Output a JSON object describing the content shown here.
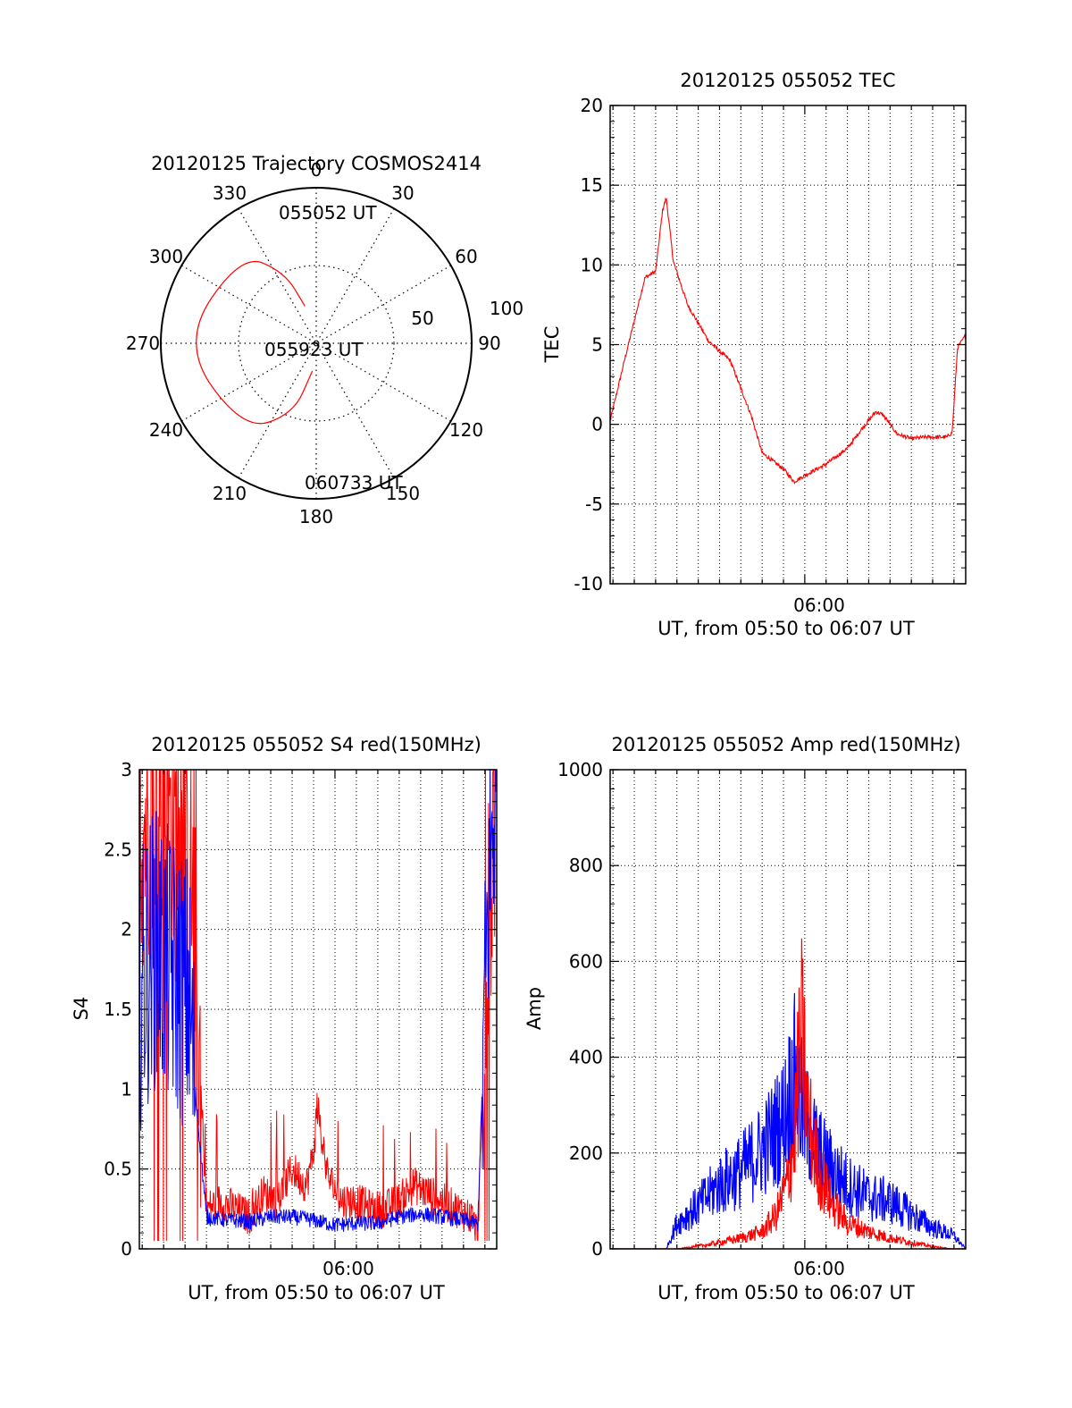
{
  "polar": {
    "title": "20120125 Trajectory COSMOS2414",
    "azimuth_labels": [
      "0",
      "30",
      "60",
      "90",
      "120",
      "150",
      "180",
      "210",
      "240",
      "270",
      "300",
      "330"
    ],
    "radial_labels": [
      "50",
      "100"
    ],
    "start_label": "055052 UT",
    "mid_label": "055923 UT",
    "end_label": "060733 UT"
  },
  "tec": {
    "title": "20120125 055052 TEC",
    "ylabel": "TEC",
    "xtick": "06:00",
    "xlabel": "UT, from 05:50 to 06:07 UT",
    "yticks": [
      "-10",
      "-5",
      "0",
      "5",
      "10",
      "15",
      "20"
    ]
  },
  "s4": {
    "title": "20120125 055052 S4 red(150MHz)",
    "ylabel": "S4",
    "xtick": "06:00",
    "xlabel": "UT, from 05:50 to 06:07 UT",
    "yticks": [
      "0",
      "0.5",
      "1",
      "1.5",
      "2",
      "2.5",
      "3"
    ]
  },
  "amp": {
    "title": "20120125 055052 Amp red(150MHz)",
    "ylabel": "Amp",
    "xtick": "06:00",
    "xlabel": "UT, from 05:50 to 06:07 UT",
    "yticks": [
      "0",
      "200",
      "400",
      "600",
      "800",
      "1000"
    ]
  },
  "colors": {
    "red": "#ff0000",
    "blue": "#0000ff",
    "axis": "#000000"
  },
  "chart_data": [
    {
      "type": "polar",
      "title": "20120125 Trajectory COSMOS2414",
      "azimuth_deg": [
        0,
        30,
        60,
        90,
        120,
        150,
        180,
        210,
        240,
        270,
        300,
        330
      ],
      "radial_rings": [
        50,
        100
      ],
      "trajectory": {
        "color": "red",
        "points_az_el": [
          [
            343,
            25
          ],
          [
            336,
            50
          ],
          [
            320,
            75
          ],
          [
            270,
            87
          ],
          [
            220,
            73
          ],
          [
            198,
            48
          ],
          [
            188,
            18
          ]
        ],
        "labels": [
          "055052 UT",
          "055923 UT",
          "060733 UT"
        ]
      }
    },
    {
      "type": "line",
      "title": "20120125 055052 TEC",
      "xlabel": "UT, from 05:50 to 06:07 UT",
      "ylabel": "TEC",
      "x_range": [
        "05:50:52",
        "06:07:33"
      ],
      "ylim": [
        -10,
        20
      ],
      "grid": true,
      "series": [
        {
          "color": "red",
          "x": [
            "05:50:52",
            "05:51:30",
            "05:52:00",
            "05:52:30",
            "05:53:00",
            "05:53:20",
            "05:53:30",
            "05:53:50",
            "05:54:30",
            "05:55:30",
            "05:56:30",
            "05:57:30",
            "05:58:00",
            "05:59:00",
            "05:59:30",
            "06:00:00",
            "06:01:00",
            "06:02:00",
            "06:02:40",
            "06:03:20",
            "06:03:40",
            "06:04:20",
            "06:05:00",
            "06:05:40",
            "06:06:40",
            "06:06:55",
            "06:07:10",
            "06:07:33"
          ],
          "y": [
            0.2,
            3.8,
            6.5,
            9.2,
            9.6,
            13.5,
            14.2,
            10.2,
            7.5,
            5.2,
            4.0,
            0.5,
            -1.8,
            -2.8,
            -3.6,
            -3.2,
            -2.5,
            -1.5,
            -0.3,
            0.8,
            0.6,
            -0.6,
            -0.9,
            -0.8,
            -0.8,
            -0.5,
            4.8,
            5.6
          ]
        }
      ]
    },
    {
      "type": "line",
      "title": "20120125 055052 S4 red(150MHz)",
      "xlabel": "UT, from 05:50 to 06:07 UT",
      "ylabel": "S4",
      "x_range": [
        "05:50:52",
        "06:07:33"
      ],
      "ylim": [
        0,
        3
      ],
      "grid": true,
      "series": [
        {
          "color": "red",
          "x": [
            "05:50:52",
            "05:52:00",
            "05:53:20",
            "05:54:00",
            "05:54:40",
            "05:55:20",
            "05:56:00",
            "05:56:40",
            "05:57:20",
            "05:58:00",
            "05:58:40",
            "05:59:00",
            "05:59:10",
            "05:59:40",
            "06:00:20",
            "06:01:00",
            "06:01:40",
            "06:02:20",
            "06:03:00",
            "06:03:40",
            "06:04:20",
            "06:05:00",
            "06:05:40",
            "06:06:20",
            "06:06:40",
            "06:07:10",
            "06:07:33"
          ],
          "y": [
            2.6,
            2.8,
            2.2,
            0.25,
            0.3,
            0.25,
            0.2,
            0.35,
            0.3,
            0.5,
            0.4,
            0.6,
            0.9,
            0.45,
            0.3,
            0.3,
            0.25,
            0.25,
            0.3,
            0.4,
            0.35,
            0.3,
            0.25,
            0.2,
            0.1,
            2.0,
            3.0
          ]
        },
        {
          "color": "blue",
          "x": [
            "05:50:52",
            "05:51:30",
            "05:52:00",
            "05:52:30",
            "05:53:10",
            "05:53:30",
            "05:54:00",
            "05:55:00",
            "05:56:00",
            "05:57:00",
            "05:58:00",
            "05:59:00",
            "06:00:00",
            "06:01:00",
            "06:02:00",
            "06:03:00",
            "06:04:00",
            "06:05:00",
            "06:06:00",
            "06:06:40",
            "06:07:10",
            "06:07:33"
          ],
          "y": [
            1.6,
            1.9,
            1.8,
            1.7,
            1.6,
            0.95,
            0.2,
            0.18,
            0.17,
            0.2,
            0.2,
            0.18,
            0.15,
            0.16,
            0.16,
            0.2,
            0.22,
            0.2,
            0.18,
            0.15,
            2.2,
            3.0
          ]
        }
      ]
    },
    {
      "type": "line",
      "title": "20120125 055052 Amp red(150MHz)",
      "xlabel": "UT, from 05:50 to 06:07 UT",
      "ylabel": "Amp",
      "x_range": [
        "05:50:52",
        "06:07:33"
      ],
      "ylim": [
        0,
        1000
      ],
      "grid": true,
      "series": [
        {
          "color": "blue",
          "x": [
            "05:50:52",
            "05:52:00",
            "05:53:30",
            "05:54:00",
            "05:55:00",
            "05:56:00",
            "05:57:00",
            "05:58:00",
            "05:59:00",
            "05:59:30",
            "06:00:00",
            "06:00:30",
            "06:01:00",
            "06:02:00",
            "06:03:00",
            "06:04:00",
            "06:05:00",
            "06:06:00",
            "06:06:30",
            "06:07:00",
            "06:07:33"
          ],
          "y": [
            0,
            0,
            0,
            60,
            100,
            150,
            180,
            230,
            300,
            400,
            300,
            240,
            200,
            150,
            120,
            110,
            80,
            50,
            40,
            30,
            0
          ]
        },
        {
          "color": "red",
          "x": [
            "05:50:52",
            "05:54:00",
            "05:55:30",
            "05:57:00",
            "05:58:00",
            "05:58:40",
            "05:59:10",
            "05:59:30",
            "05:59:50",
            "06:00:10",
            "06:00:40",
            "06:01:20",
            "06:02:00",
            "06:03:00",
            "06:04:00",
            "06:05:00",
            "06:06:00",
            "06:07:00",
            "06:07:33"
          ],
          "y": [
            0,
            0,
            10,
            25,
            40,
            80,
            150,
            250,
            500,
            300,
            180,
            100,
            60,
            40,
            25,
            15,
            5,
            0,
            0
          ]
        }
      ]
    }
  ]
}
